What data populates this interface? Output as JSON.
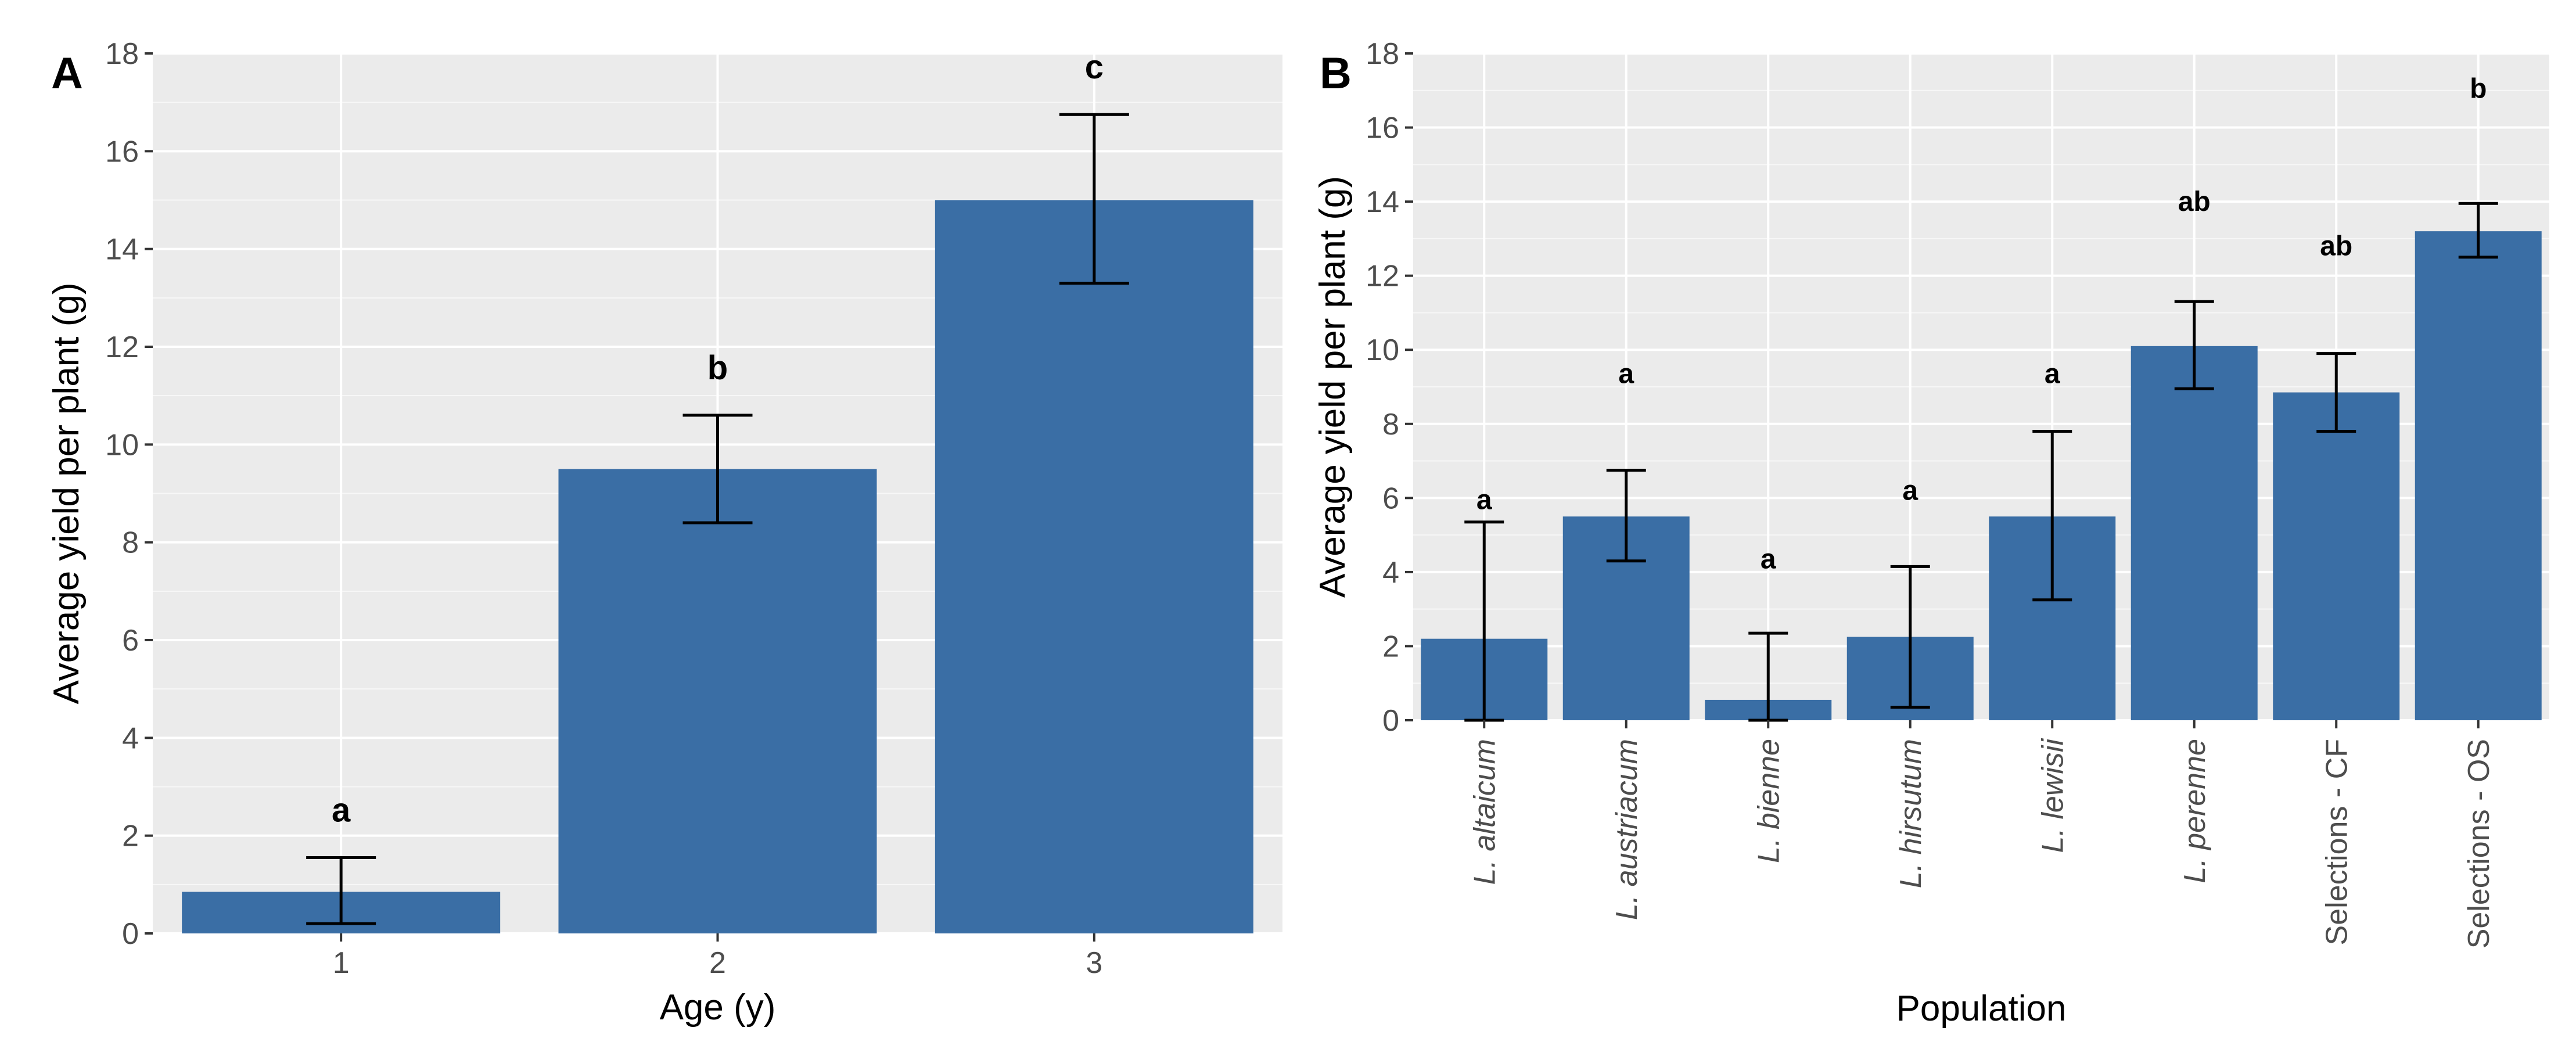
{
  "chart_data": [
    {
      "type": "bar",
      "panel_label": "A",
      "xlabel": "Age (y)",
      "ylabel": "Average yield per plant (g)",
      "ylim": [
        0,
        18
      ],
      "y_ticks": [
        0,
        2,
        4,
        6,
        8,
        10,
        12,
        14,
        16,
        18
      ],
      "categories": [
        "1",
        "2",
        "3"
      ],
      "values": [
        0.85,
        9.5,
        15.0
      ],
      "error_low": [
        0.2,
        8.4,
        13.3
      ],
      "error_high": [
        1.55,
        10.6,
        16.75
      ],
      "significance": [
        "a",
        "b",
        "c"
      ],
      "grid": true,
      "bar_color": "#3a6ea5",
      "panel_background": "#ebebeb"
    },
    {
      "type": "bar",
      "panel_label": "B",
      "xlabel": "Population",
      "ylabel": "Average yield per plant (g)",
      "ylim": [
        0,
        18
      ],
      "y_ticks": [
        0,
        2,
        4,
        6,
        8,
        10,
        12,
        14,
        16,
        18
      ],
      "categories": [
        "L. altaicum",
        "L. austriacum",
        "L. bienne",
        "L. hirsutum",
        "L. lewisii",
        "L. perenne",
        "Selections - CF",
        "Selections - OS"
      ],
      "italic_categories": [
        true,
        true,
        true,
        true,
        true,
        true,
        false,
        false
      ],
      "values": [
        2.2,
        5.5,
        0.55,
        2.25,
        5.5,
        10.1,
        8.85,
        13.2
      ],
      "error_low": [
        0.0,
        4.3,
        0.0,
        0.35,
        3.25,
        8.95,
        7.8,
        12.5
      ],
      "error_high": [
        5.35,
        6.75,
        2.35,
        4.15,
        7.8,
        11.3,
        9.9,
        13.95
      ],
      "significance": [
        "a",
        "a",
        "a",
        "a",
        "a",
        "ab",
        "ab",
        "b"
      ],
      "significance_y": [
        5.7,
        9.1,
        4.1,
        5.95,
        9.1,
        13.75,
        12.55,
        16.8
      ],
      "grid": true,
      "bar_color": "#3a6ea5",
      "panel_background": "#ebebeb"
    }
  ]
}
